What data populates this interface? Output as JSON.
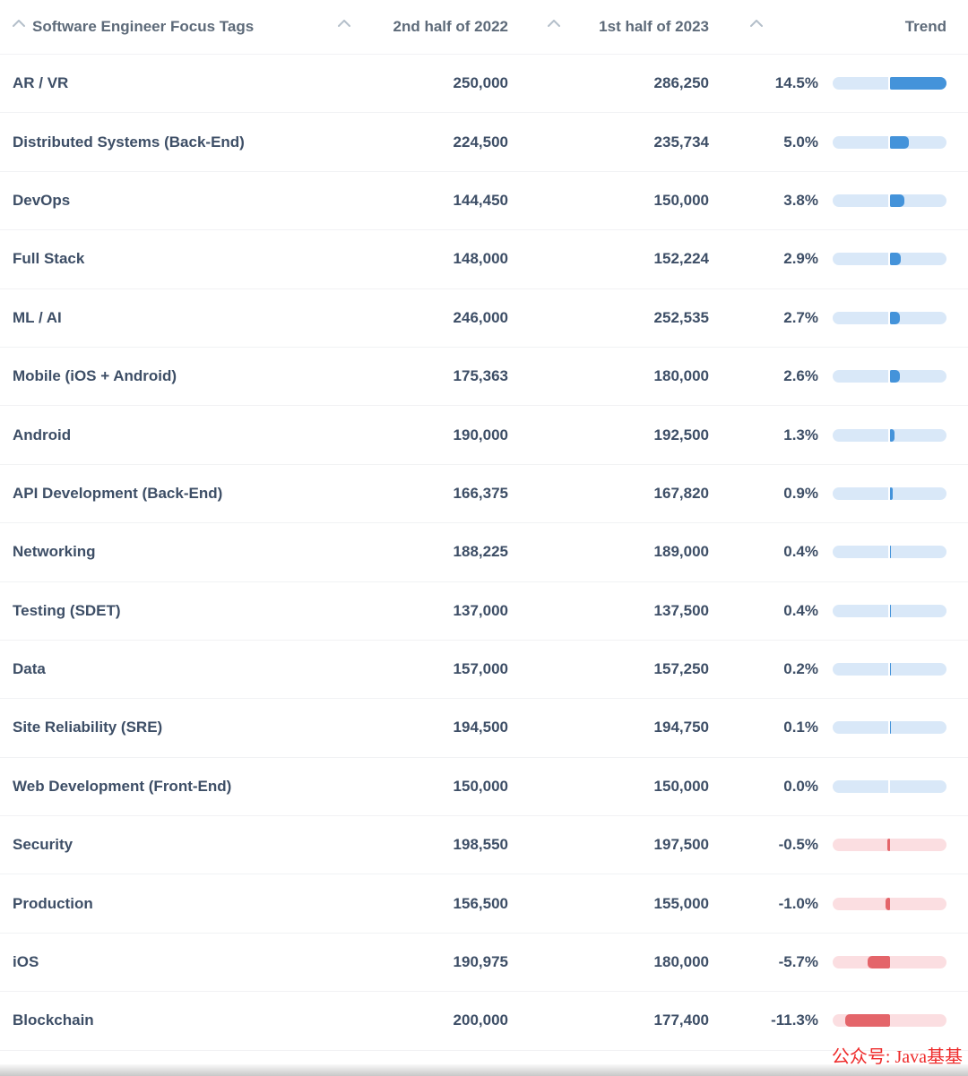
{
  "table": {
    "columns": [
      {
        "label": "Software Engineer Focus Tags",
        "sortable": true
      },
      {
        "label": "2nd half of 2022",
        "sortable": true
      },
      {
        "label": "1st half of 2023",
        "sortable": true
      },
      {
        "label": "",
        "sortable": true
      },
      {
        "label": "Trend",
        "sortable": false
      }
    ],
    "trend_scale_max_abs_pct": 14.5,
    "rows": [
      {
        "tag": "AR / VR",
        "h2_2022": "250,000",
        "h1_2023": "286,250",
        "pct_label": "14.5%",
        "pct": 14.5
      },
      {
        "tag": "Distributed Systems (Back-End)",
        "h2_2022": "224,500",
        "h1_2023": "235,734",
        "pct_label": "5.0%",
        "pct": 5.0
      },
      {
        "tag": "DevOps",
        "h2_2022": "144,450",
        "h1_2023": "150,000",
        "pct_label": "3.8%",
        "pct": 3.8
      },
      {
        "tag": "Full Stack",
        "h2_2022": "148,000",
        "h1_2023": "152,224",
        "pct_label": "2.9%",
        "pct": 2.9
      },
      {
        "tag": "ML / AI",
        "h2_2022": "246,000",
        "h1_2023": "252,535",
        "pct_label": "2.7%",
        "pct": 2.7
      },
      {
        "tag": "Mobile (iOS + Android)",
        "h2_2022": "175,363",
        "h1_2023": "180,000",
        "pct_label": "2.6%",
        "pct": 2.6
      },
      {
        "tag": "Android",
        "h2_2022": "190,000",
        "h1_2023": "192,500",
        "pct_label": "1.3%",
        "pct": 1.3
      },
      {
        "tag": "API Development (Back-End)",
        "h2_2022": "166,375",
        "h1_2023": "167,820",
        "pct_label": "0.9%",
        "pct": 0.9
      },
      {
        "tag": "Networking",
        "h2_2022": "188,225",
        "h1_2023": "189,000",
        "pct_label": "0.4%",
        "pct": 0.4
      },
      {
        "tag": "Testing (SDET)",
        "h2_2022": "137,000",
        "h1_2023": "137,500",
        "pct_label": "0.4%",
        "pct": 0.4
      },
      {
        "tag": "Data",
        "h2_2022": "157,000",
        "h1_2023": "157,250",
        "pct_label": "0.2%",
        "pct": 0.2
      },
      {
        "tag": "Site Reliability (SRE)",
        "h2_2022": "194,500",
        "h1_2023": "194,750",
        "pct_label": "0.1%",
        "pct": 0.1
      },
      {
        "tag": "Web Development (Front-End)",
        "h2_2022": "150,000",
        "h1_2023": "150,000",
        "pct_label": "0.0%",
        "pct": 0.0
      },
      {
        "tag": "Security",
        "h2_2022": "198,550",
        "h1_2023": "197,500",
        "pct_label": "-0.5%",
        "pct": -0.5
      },
      {
        "tag": "Production",
        "h2_2022": "156,500",
        "h1_2023": "155,000",
        "pct_label": "-1.0%",
        "pct": -1.0
      },
      {
        "tag": "iOS",
        "h2_2022": "190,975",
        "h1_2023": "180,000",
        "pct_label": "-5.7%",
        "pct": -5.7
      },
      {
        "tag": "Blockchain",
        "h2_2022": "200,000",
        "h1_2023": "177,400",
        "pct_label": "-11.3%",
        "pct": -11.3
      }
    ]
  },
  "colors": {
    "positive_fill": "#4493da",
    "positive_track": "#d9e8f8",
    "negative_fill": "#e4656a",
    "negative_track": "#fbdee1",
    "row_text": "#3d4e66",
    "header_text": "#5d6a79",
    "caret": "#b4bfca",
    "separator": "#f1f2f4",
    "watermark_red": "#ee2b2b"
  },
  "watermark": {
    "text": "公众号: Java基基"
  }
}
